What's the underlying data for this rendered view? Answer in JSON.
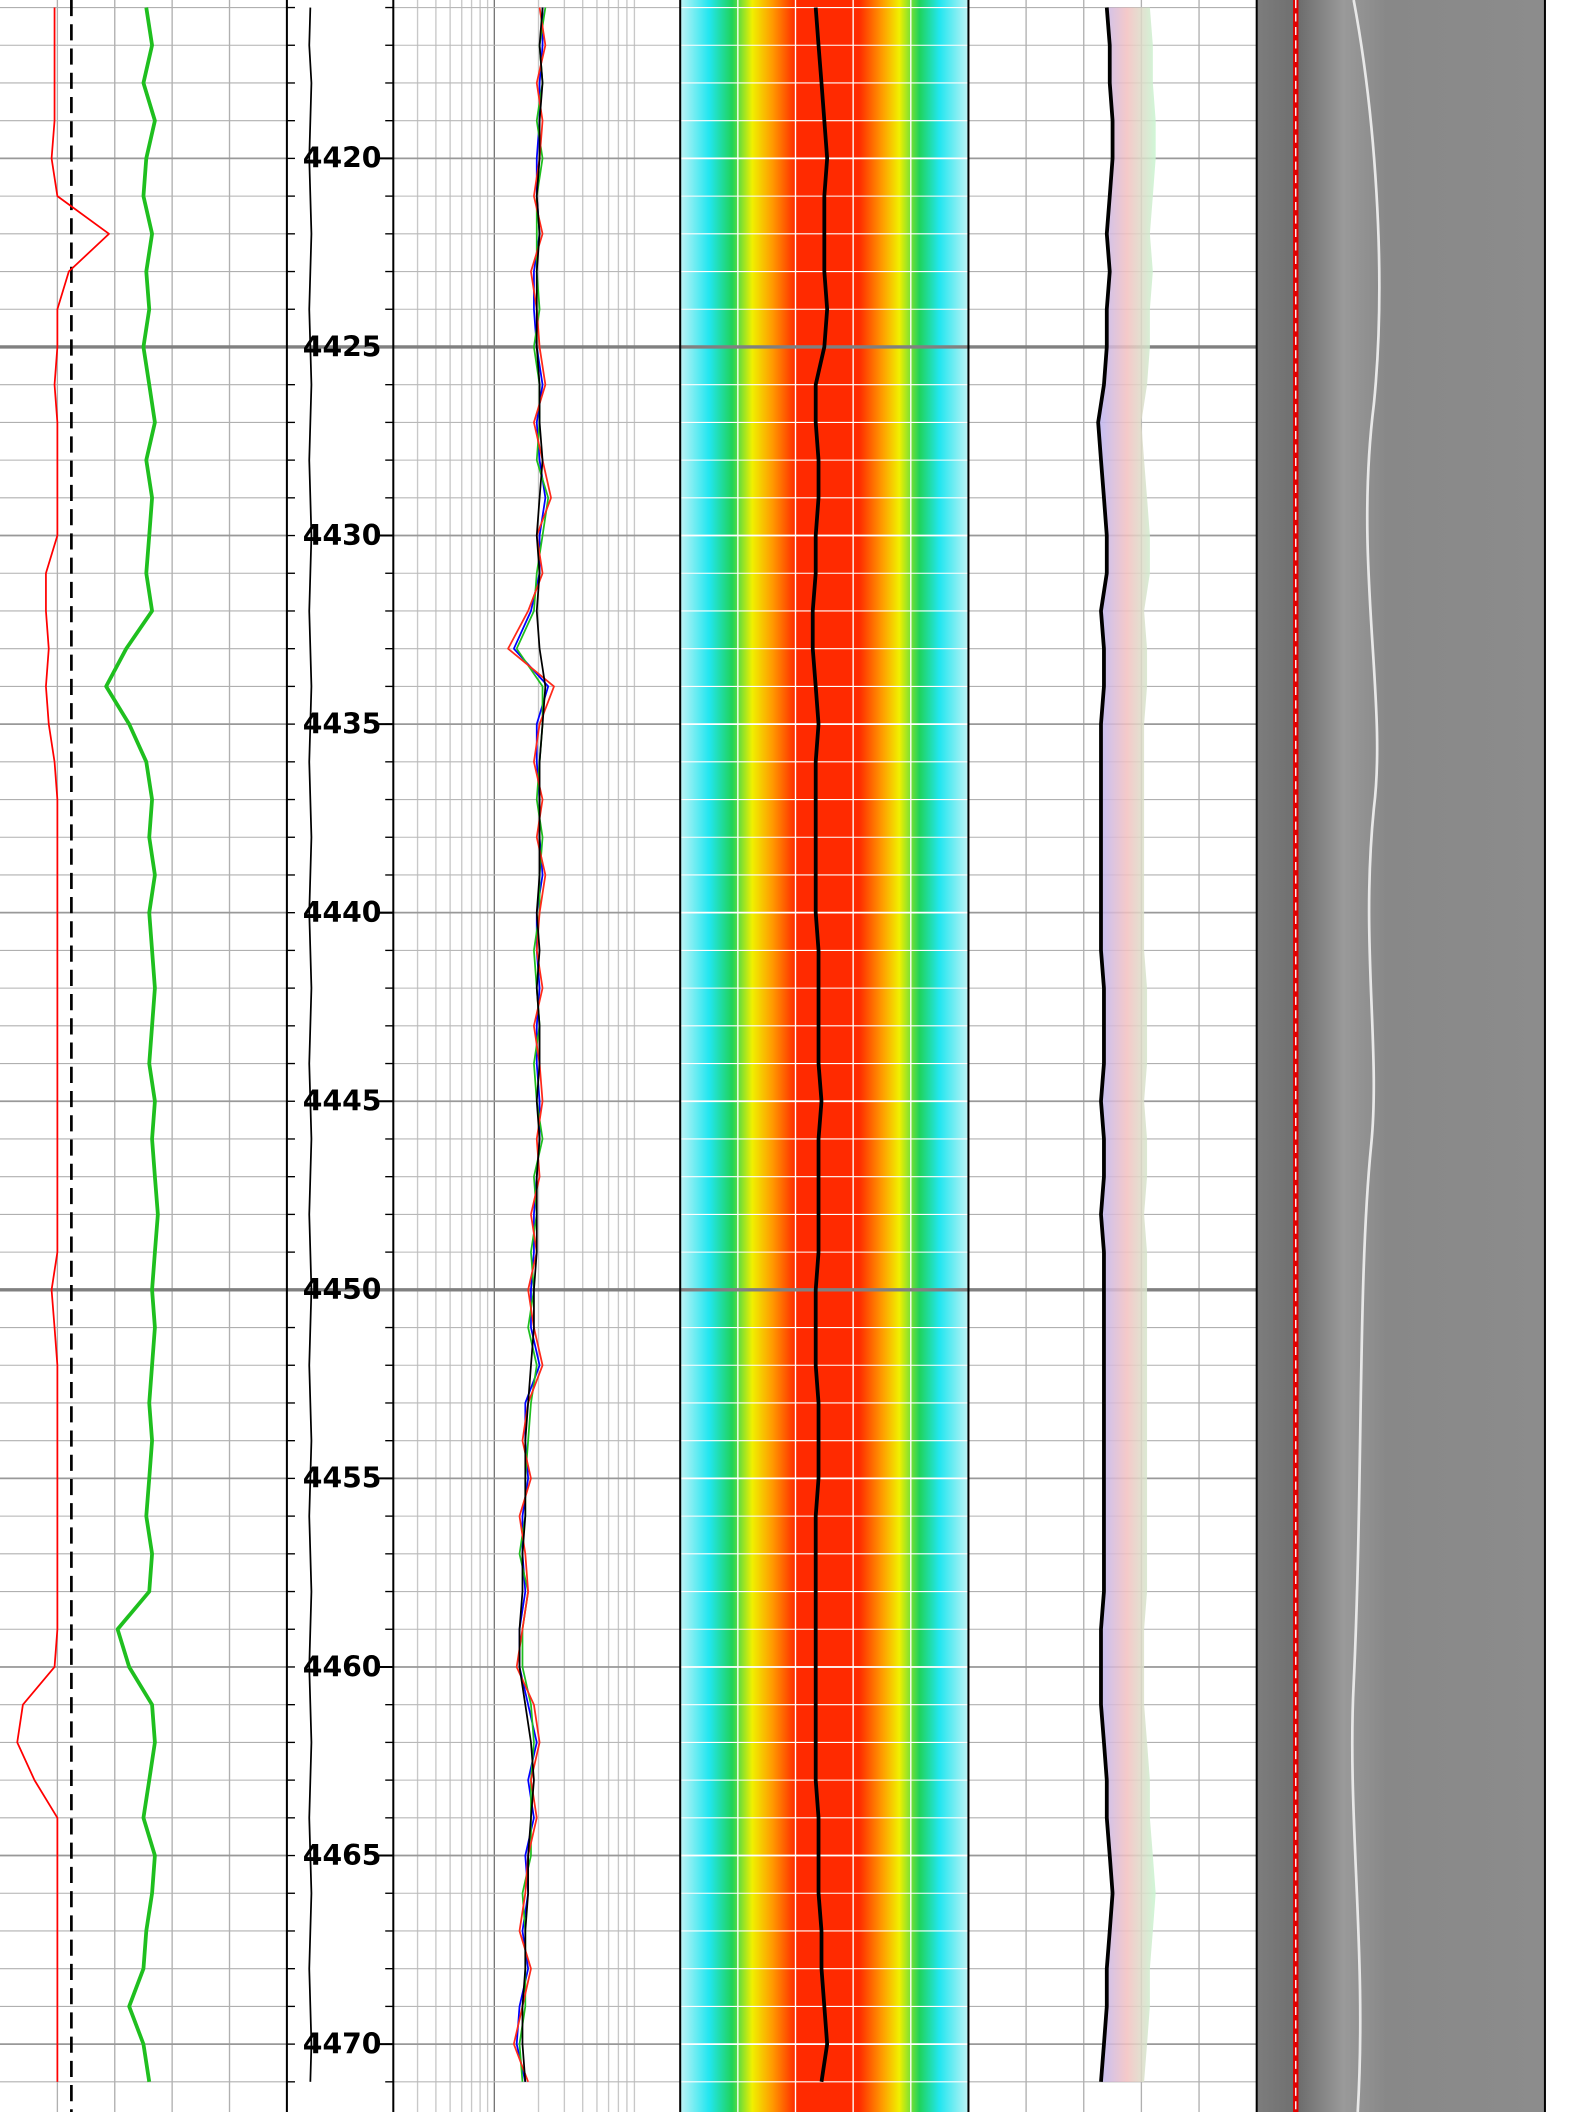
{
  "chart_data": {
    "type": "well-log",
    "x": [
      4416,
      4417,
      4418,
      4419,
      4420,
      4421,
      4422,
      4423,
      4424,
      4425,
      4426,
      4427,
      4428,
      4429,
      4430,
      4431,
      4432,
      4433,
      4434,
      4435,
      4436,
      4437,
      4438,
      4439,
      4440,
      4441,
      4442,
      4443,
      4444,
      4445,
      4446,
      4447,
      4448,
      4449,
      4450,
      4451,
      4452,
      4453,
      4454,
      4455,
      4456,
      4457,
      4458,
      4459,
      4460,
      4461,
      4462,
      4463,
      4464,
      4465,
      4466,
      4467,
      4468,
      4469,
      4470,
      4471
    ],
    "ylim": [
      4415.8,
      4471.8
    ],
    "yticks": [
      4420,
      4425,
      4430,
      4435,
      4440,
      4445,
      4450,
      4455,
      4460,
      4465,
      4470
    ],
    "xlim": [
      0,
      100
    ],
    "grid": true,
    "series": [
      {
        "track": 0,
        "color": "#ff0000",
        "values": [
          19,
          19,
          19,
          19,
          18,
          20,
          38,
          24,
          20,
          20,
          19,
          20,
          20,
          20,
          20,
          16,
          16,
          17,
          16,
          17,
          19,
          20,
          20,
          20,
          20,
          20,
          20,
          20,
          20,
          20,
          20,
          20,
          20,
          20,
          18,
          19,
          20,
          20,
          20,
          20,
          20,
          20,
          20,
          20,
          19,
          8,
          6,
          12,
          20,
          20,
          20,
          20,
          20,
          20,
          20,
          20
        ]
      },
      {
        "track": 0,
        "color": "#1fbf1f",
        "values": [
          51,
          53,
          50,
          54,
          51,
          50,
          53,
          51,
          52,
          50,
          52,
          54,
          51,
          53,
          52,
          51,
          53,
          44,
          37,
          45,
          51,
          53,
          52,
          54,
          52,
          53,
          54,
          53,
          52,
          54,
          53,
          54,
          55,
          54,
          53,
          54,
          53,
          52,
          53,
          52,
          51,
          53,
          52,
          41,
          45,
          53,
          54,
          52,
          50,
          54,
          53,
          51,
          50,
          45,
          50,
          52
        ]
      },
      {
        "track": 1,
        "color": "#000000",
        "values": [
          22,
          21,
          23,
          22,
          21,
          22,
          23,
          22,
          21,
          22,
          23,
          22,
          21,
          22,
          23,
          22,
          21,
          22,
          23,
          22,
          21,
          22,
          23,
          22,
          21,
          22,
          23,
          22,
          21,
          22,
          23,
          22,
          21,
          22,
          23,
          22,
          21,
          22,
          23,
          22,
          21,
          22,
          23,
          22,
          21,
          22,
          23,
          22,
          21,
          22,
          23,
          22,
          21,
          22,
          23,
          22
        ]
      },
      {
        "track": 2,
        "color": "#0000ff",
        "values": [
          52,
          52,
          51,
          51,
          50,
          50,
          51,
          49,
          49,
          50,
          52,
          50,
          51,
          53,
          51,
          51,
          48,
          42,
          54,
          50,
          50,
          51,
          51,
          52,
          50,
          50,
          51,
          50,
          50,
          51,
          51,
          50,
          49,
          49,
          48,
          48,
          51,
          46,
          46,
          47,
          45,
          45,
          46,
          44,
          44,
          47,
          50,
          47,
          49,
          46,
          47,
          45,
          47,
          44,
          43,
          46
        ]
      },
      {
        "track": 2,
        "color": "#1fbf1f",
        "values": [
          53,
          51,
          52,
          50,
          52,
          50,
          50,
          50,
          51,
          49,
          51,
          51,
          50,
          54,
          52,
          50,
          49,
          43,
          52,
          52,
          51,
          50,
          52,
          51,
          51,
          49,
          50,
          51,
          49,
          50,
          52,
          49,
          50,
          48,
          49,
          47,
          50,
          48,
          47,
          46,
          46,
          44,
          47,
          45,
          45,
          48,
          49,
          48,
          48,
          48,
          45,
          46,
          46,
          46,
          44,
          45
        ]
      },
      {
        "track": 2,
        "color": "#ff2a1a",
        "values": [
          51,
          53,
          50,
          52,
          51,
          49,
          52,
          48,
          50,
          51,
          53,
          49,
          52,
          55,
          50,
          52,
          47,
          40,
          56,
          51,
          49,
          52,
          50,
          53,
          51,
          50,
          52,
          49,
          51,
          52,
          50,
          51,
          48,
          50,
          47,
          49,
          52,
          47,
          45,
          48,
          44,
          46,
          47,
          45,
          43,
          49,
          51,
          48,
          50,
          47,
          46,
          44,
          48,
          45,
          42,
          47
        ]
      },
      {
        "track": 2,
        "color": "#000000",
        "values": [
          52,
          51,
          52,
          51,
          51,
          50,
          51,
          50,
          50,
          50,
          51,
          51,
          52,
          51,
          50,
          51,
          50,
          51,
          53,
          52,
          51,
          51,
          51,
          51,
          50,
          51,
          50,
          51,
          51,
          50,
          51,
          50,
          50,
          50,
          49,
          49,
          48,
          47,
          46,
          46,
          46,
          45,
          45,
          44,
          44,
          46,
          48,
          49,
          48,
          47,
          47,
          46,
          46,
          45,
          45,
          46
        ]
      },
      {
        "track": 3,
        "color": "#000000",
        "values": [
          47,
          48,
          49,
          50,
          51,
          50,
          50,
          50,
          51,
          50,
          47,
          47,
          48,
          48,
          47,
          47,
          46,
          46,
          47,
          48,
          47,
          47,
          47,
          47,
          47,
          48,
          48,
          48,
          48,
          49,
          48,
          48,
          48,
          48,
          47,
          47,
          47,
          48,
          48,
          48,
          47,
          47,
          47,
          47,
          47,
          47,
          47,
          47,
          48,
          48,
          48,
          49,
          49,
          50,
          51,
          49
        ]
      },
      {
        "track": 4,
        "color": "#000000",
        "values": [
          48,
          49,
          49,
          50,
          50,
          49,
          48,
          49,
          48,
          48,
          47,
          45,
          46,
          47,
          48,
          48,
          46,
          47,
          47,
          46,
          46,
          46,
          46,
          46,
          46,
          46,
          47,
          47,
          47,
          46,
          47,
          47,
          46,
          47,
          47,
          47,
          47,
          47,
          47,
          47,
          47,
          47,
          47,
          46,
          46,
          46,
          47,
          48,
          48,
          49,
          50,
          49,
          48,
          48,
          47,
          46
        ]
      }
    ]
  }
}
